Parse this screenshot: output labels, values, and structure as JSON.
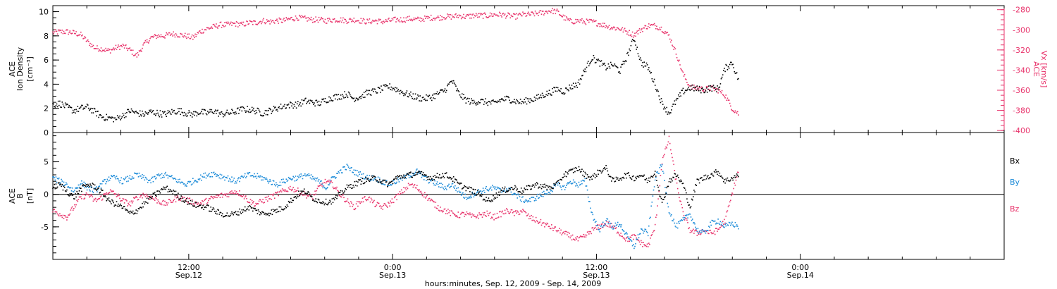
{
  "chart_data": [
    {
      "type": "scatter",
      "panel": "top",
      "ylabel_left": [
        "ACE",
        "Ion Density",
        "[cm⁻³]"
      ],
      "ylabel_right": [
        "ACE",
        "Vx [km/s]"
      ],
      "ylim_left": [
        0,
        10.5
      ],
      "yticks_left": [
        "0",
        "2",
        "4",
        "6",
        "8",
        "10"
      ],
      "ylim_right": [
        -402,
        -276
      ],
      "yticks_right": [
        "-280",
        "-300",
        "-320",
        "-340",
        "-360",
        "-380",
        "-400"
      ],
      "series": [
        {
          "axis": "left",
          "color": "#000000",
          "x": [
            0,
            1,
            2,
            3,
            4,
            5,
            6,
            7,
            8,
            9,
            10,
            11,
            12,
            13,
            14,
            15,
            16,
            17,
            18,
            19,
            20,
            21,
            22,
            23,
            24,
            25,
            26,
            27,
            28,
            29,
            30,
            31,
            32,
            33,
            34,
            35,
            36,
            37,
            38,
            39,
            40,
            41,
            42,
            43,
            44,
            45,
            46,
            47,
            48,
            49,
            50,
            51,
            52,
            53,
            54,
            55,
            56,
            57,
            58,
            59,
            60,
            61,
            62,
            63,
            64,
            65,
            66,
            67,
            68,
            69,
            70,
            71,
            72,
            73,
            74,
            75,
            76,
            77,
            78,
            79,
            80,
            81,
            82,
            83,
            84,
            85,
            86,
            87,
            88,
            89,
            90,
            91,
            92,
            93,
            94,
            95,
            96,
            97,
            98
          ],
          "y": [
            2.3,
            2.4,
            2.1,
            1.8,
            2.0,
            2.1,
            1.7,
            1.3,
            1.2,
            1.1,
            1.4,
            1.8,
            1.6,
            1.5,
            1.7,
            1.6,
            1.5,
            1.7,
            1.8,
            1.6,
            1.5,
            1.7,
            1.6,
            1.8,
            1.5,
            1.6,
            1.7,
            1.9,
            1.9,
            1.8,
            1.6,
            1.8,
            2.0,
            2.2,
            2.3,
            2.3,
            2.6,
            2.5,
            2.4,
            2.7,
            2.9,
            3.0,
            3.2,
            2.8,
            3.0,
            3.3,
            3.4,
            3.6,
            3.8,
            3.6,
            3.3,
            3.1,
            2.9,
            2.8,
            2.9,
            3.2,
            3.5,
            4.3,
            3.2,
            2.7,
            2.5,
            2.6,
            2.5,
            2.4,
            2.7,
            2.8,
            2.6,
            2.5,
            2.7,
            2.8,
            3.1,
            3.3,
            3.6,
            3.4,
            3.8,
            4.0,
            5.2,
            6.2,
            5.8,
            5.4,
            5.6,
            5.1,
            6.3,
            7.8,
            5.8,
            5.4,
            4.0,
            2.4,
            1.6,
            2.6,
            3.4,
            3.7,
            3.6,
            3.5,
            3.7,
            3.6,
            5.3,
            5.8,
            4.2
          ]
        },
        {
          "axis": "right",
          "color": "#e8336b",
          "x": [
            0,
            1,
            2,
            3,
            4,
            5,
            6,
            7,
            8,
            9,
            10,
            11,
            12,
            13,
            14,
            15,
            16,
            17,
            18,
            19,
            20,
            21,
            22,
            23,
            24,
            25,
            26,
            27,
            28,
            29,
            30,
            31,
            32,
            33,
            34,
            35,
            36,
            37,
            38,
            39,
            40,
            41,
            42,
            43,
            44,
            45,
            46,
            47,
            48,
            49,
            50,
            51,
            52,
            53,
            54,
            55,
            56,
            57,
            58,
            59,
            60,
            61,
            62,
            63,
            64,
            65,
            66,
            67,
            68,
            69,
            70,
            71,
            72,
            73,
            74,
            75,
            76,
            77,
            78,
            79,
            80,
            81,
            82,
            83,
            84,
            85,
            86,
            87,
            88,
            89,
            90,
            91,
            92,
            93,
            94,
            95,
            96,
            97,
            98
          ],
          "y": [
            -303,
            -302,
            -302,
            -303,
            -305,
            -312,
            -318,
            -319,
            -321,
            -318,
            -316,
            -320,
            -326,
            -315,
            -308,
            -306,
            -306,
            -304,
            -305,
            -306,
            -308,
            -302,
            -299,
            -297,
            -295,
            -295,
            -294,
            -295,
            -293,
            -293,
            -291,
            -292,
            -291,
            -291,
            -289,
            -288,
            -289,
            -290,
            -290,
            -291,
            -290,
            -290,
            -291,
            -290,
            -291,
            -292,
            -291,
            -292,
            -291,
            -290,
            -290,
            -289,
            -290,
            -289,
            -288,
            -288,
            -287,
            -287,
            -286,
            -287,
            -286,
            -286,
            -286,
            -285,
            -285,
            -286,
            -287,
            -285,
            -285,
            -284,
            -283,
            -281,
            -282,
            -288,
            -292,
            -291,
            -292,
            -292,
            -294,
            -296,
            -298,
            -299,
            -302,
            -305,
            -300,
            -296,
            -296,
            -299,
            -306,
            -323,
            -344,
            -357,
            -358,
            -359,
            -358,
            -360,
            -365,
            -378,
            -384
          ]
        }
      ]
    },
    {
      "type": "scatter",
      "panel": "bottom",
      "ylabel_left": [
        "ACE",
        "B",
        "[nT]"
      ],
      "ylim": [
        -10,
        9.5
      ],
      "yticks_left": [
        "-5",
        "0",
        "5"
      ],
      "zero_line": true,
      "legend": [
        "Bx",
        "By",
        "Bz"
      ],
      "series": [
        {
          "name": "Bx",
          "color": "#000000",
          "x": [
            0,
            1,
            2,
            3,
            4,
            5,
            6,
            7,
            8,
            9,
            10,
            11,
            12,
            13,
            14,
            15,
            16,
            17,
            18,
            19,
            20,
            21,
            22,
            23,
            24,
            25,
            26,
            27,
            28,
            29,
            30,
            31,
            32,
            33,
            34,
            35,
            36,
            37,
            38,
            39,
            40,
            41,
            42,
            43,
            44,
            45,
            46,
            47,
            48,
            49,
            50,
            51,
            52,
            53,
            54,
            55,
            56,
            57,
            58,
            59,
            60,
            61,
            62,
            63,
            64,
            65,
            66,
            67,
            68,
            69,
            70,
            71,
            72,
            73,
            74,
            75,
            76,
            77,
            78,
            79,
            80,
            81,
            82,
            83,
            84,
            85,
            86,
            87,
            88,
            89,
            90,
            91,
            92,
            93,
            94,
            95,
            96,
            97,
            98
          ],
          "y": [
            1.0,
            1.5,
            0.5,
            -0.5,
            0.8,
            1.5,
            1.2,
            0.3,
            -1.0,
            -1.5,
            -2.0,
            -3.0,
            -2.5,
            -1.5,
            -0.5,
            0.2,
            1.0,
            0.5,
            -0.3,
            -1.0,
            -1.5,
            -1.8,
            -2.0,
            -2.5,
            -3.0,
            -3.2,
            -3.0,
            -2.5,
            -2.0,
            -2.5,
            -3.0,
            -2.8,
            -2.5,
            -2.0,
            -1.0,
            0.0,
            0.5,
            -0.5,
            -1.0,
            -1.2,
            -1.0,
            0.0,
            1.0,
            1.5,
            2.0,
            2.2,
            2.5,
            2.0,
            1.5,
            2.5,
            2.8,
            3.0,
            3.2,
            3.0,
            2.5,
            2.8,
            3.0,
            2.5,
            1.5,
            1.0,
            0.5,
            0.0,
            -1.0,
            -0.5,
            0.5,
            0.8,
            1.0,
            0.5,
            1.0,
            1.5,
            1.2,
            1.0,
            1.5,
            3.0,
            3.5,
            4.0,
            3.0,
            2.5,
            3.5,
            4.0,
            2.0,
            2.5,
            3.0,
            2.5,
            3.0,
            2.0,
            3.5,
            -1.5,
            2.0,
            3.0,
            1.5,
            -2.0,
            2.0,
            2.5,
            3.0,
            3.5,
            2.0,
            2.5,
            3.0
          ]
        },
        {
          "name": "By",
          "color": "#1a8ad8",
          "x": [
            0,
            1,
            2,
            3,
            4,
            5,
            6,
            7,
            8,
            9,
            10,
            11,
            12,
            13,
            14,
            15,
            16,
            17,
            18,
            19,
            20,
            21,
            22,
            23,
            24,
            25,
            26,
            27,
            28,
            29,
            30,
            31,
            32,
            33,
            34,
            35,
            36,
            37,
            38,
            39,
            40,
            41,
            42,
            43,
            44,
            45,
            46,
            47,
            48,
            49,
            50,
            51,
            52,
            53,
            54,
            55,
            56,
            57,
            58,
            59,
            60,
            61,
            62,
            63,
            64,
            65,
            66,
            67,
            68,
            69,
            70,
            71,
            72,
            73,
            74,
            75,
            76,
            77,
            78,
            79,
            80,
            81,
            82,
            83,
            84,
            85,
            86,
            87,
            88,
            89,
            90,
            91,
            92,
            93,
            94,
            95,
            96,
            97,
            98
          ],
          "y": [
            2.5,
            2.0,
            1.5,
            0.5,
            1.8,
            1.0,
            0.5,
            1.5,
            2.5,
            2.5,
            2.0,
            2.5,
            3.0,
            2.5,
            2.0,
            2.8,
            3.0,
            2.5,
            2.0,
            1.5,
            2.0,
            2.5,
            3.0,
            3.2,
            2.8,
            2.5,
            2.0,
            2.5,
            3.0,
            2.8,
            2.5,
            2.0,
            1.5,
            2.0,
            2.5,
            2.5,
            3.0,
            2.5,
            2.0,
            1.0,
            2.5,
            3.5,
            4.2,
            3.5,
            3.0,
            2.5,
            2.5,
            2.0,
            1.5,
            2.0,
            2.5,
            3.0,
            3.5,
            2.5,
            2.0,
            1.5,
            1.0,
            1.5,
            0.5,
            -0.5,
            0.0,
            0.5,
            0.8,
            1.0,
            0.5,
            0.8,
            0.0,
            -0.8,
            -1.0,
            -0.5,
            0.0,
            0.5,
            1.5,
            1.0,
            2.0,
            1.5,
            2.0,
            -3.0,
            -5.5,
            -4.0,
            -5.0,
            -4.5,
            -6.5,
            -8.0,
            -5.5,
            -6.0,
            2.5,
            4.5,
            -2.5,
            -5.0,
            -4.0,
            -3.0,
            -5.5,
            -6.0,
            -4.5,
            -4.0,
            -5.0,
            -4.5,
            -5.0
          ]
        },
        {
          "name": "Bz",
          "color": "#e8336b",
          "x": [
            0,
            1,
            2,
            3,
            4,
            5,
            6,
            7,
            8,
            9,
            10,
            11,
            12,
            13,
            14,
            15,
            16,
            17,
            18,
            19,
            20,
            21,
            22,
            23,
            24,
            25,
            26,
            27,
            28,
            29,
            30,
            31,
            32,
            33,
            34,
            35,
            36,
            37,
            38,
            39,
            40,
            41,
            42,
            43,
            44,
            45,
            46,
            47,
            48,
            49,
            50,
            51,
            52,
            53,
            54,
            55,
            56,
            57,
            58,
            59,
            60,
            61,
            62,
            63,
            64,
            65,
            66,
            67,
            68,
            69,
            70,
            71,
            72,
            73,
            74,
            75,
            76,
            77,
            78,
            79,
            80,
            81,
            82,
            83,
            84,
            85,
            86,
            87,
            88,
            89,
            90,
            91,
            92,
            93,
            94,
            95,
            96,
            97,
            98
          ],
          "y": [
            -2.5,
            -3.0,
            -3.5,
            -2.0,
            -0.5,
            0.0,
            -1.0,
            -0.5,
            0.5,
            0.0,
            -1.0,
            -1.5,
            -0.5,
            0.0,
            -0.5,
            -1.0,
            -1.5,
            -1.0,
            -0.5,
            -0.8,
            -1.2,
            -1.5,
            -1.0,
            -0.5,
            -0.2,
            0.0,
            0.5,
            0.0,
            -1.0,
            -1.5,
            -1.0,
            -0.5,
            0.0,
            0.5,
            1.0,
            0.5,
            0.0,
            -0.5,
            1.0,
            2.0,
            1.5,
            0.0,
            -1.0,
            -2.0,
            -1.0,
            -0.5,
            -1.5,
            -2.0,
            -1.5,
            -0.5,
            0.5,
            1.5,
            1.0,
            0.0,
            -1.0,
            -2.0,
            -2.5,
            -3.0,
            -3.2,
            -3.0,
            -3.5,
            -3.2,
            -3.0,
            -3.5,
            -3.0,
            -2.5,
            -3.0,
            -2.5,
            -3.5,
            -4.0,
            -4.5,
            -5.0,
            -5.5,
            -6.0,
            -6.5,
            -7.0,
            -6.5,
            -5.5,
            -5.0,
            -4.5,
            -5.0,
            -6.0,
            -7.0,
            -6.5,
            -7.5,
            -8.0,
            -5.0,
            5.0,
            8.5,
            2.0,
            -3.0,
            -5.5,
            -6.0,
            -5.5,
            -6.0,
            -5.5,
            -4.0,
            0.0,
            4.0
          ]
        }
      ]
    }
  ],
  "time_axis": {
    "xlim_hours": [
      0,
      56
    ],
    "data_end_hour": 40.4,
    "ticks": [
      {
        "time": "12:00",
        "date": "Sep.12",
        "hour": 8
      },
      {
        "time": "0:00",
        "date": "Sep.13",
        "hour": 20
      },
      {
        "time": "12:00",
        "date": "Sep.13",
        "hour": 32
      },
      {
        "time": "0:00",
        "date": "Sep.14",
        "hour": 44
      }
    ],
    "xlabel": "hours:minutes, Sep. 12, 2009 - Sep. 14, 2009"
  },
  "colors": {
    "density": "#000000",
    "velocity": "#e8336b",
    "bx": "#000000",
    "by": "#1a8ad8",
    "bz": "#e8336b"
  }
}
